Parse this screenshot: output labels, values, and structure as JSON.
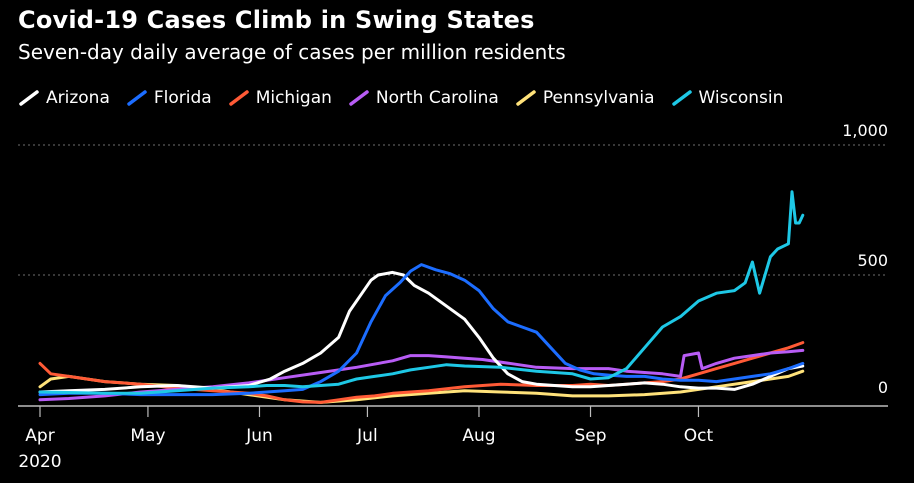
{
  "title": "Covid-19 Cases Climb in Swing States",
  "subtitle": "Seven-day daily average of cases per million residents",
  "colors": {
    "background": "#000000",
    "text": "#ffffff",
    "grid": "#6f6f6f",
    "axis": "#bdbdbd"
  },
  "chart_data": {
    "type": "line",
    "x_unit": "day of 2020",
    "x_ticks": [
      {
        "label": "Apr",
        "value": 92
      },
      {
        "label": "May",
        "value": 122
      },
      {
        "label": "Jun",
        "value": 153
      },
      {
        "label": "Jul",
        "value": 183
      },
      {
        "label": "Aug",
        "value": 214
      },
      {
        "label": "Sep",
        "value": 245
      },
      {
        "label": "Oct",
        "value": 275
      }
    ],
    "x_year_label": "2020",
    "xlim": [
      92,
      306
    ],
    "ylim": [
      0,
      1000
    ],
    "y_ticks": [
      {
        "label": "1,000",
        "value": 1000
      },
      {
        "label": "500",
        "value": 500
      },
      {
        "label": "0",
        "value": 0
      }
    ],
    "grid": true,
    "legend_position": "top-left",
    "series": [
      {
        "name": "Arizona",
        "color": "#ffffff",
        "x": [
          92,
          100,
          110,
          120,
          130,
          140,
          150,
          156,
          160,
          165,
          170,
          175,
          178,
          181,
          184,
          186,
          190,
          193,
          196,
          200,
          205,
          210,
          214,
          218,
          222,
          226,
          230,
          235,
          240,
          245,
          250,
          255,
          260,
          265,
          270,
          275,
          280,
          285,
          290,
          295,
          300,
          304
        ],
        "y": [
          50,
          55,
          60,
          70,
          75,
          65,
          75,
          100,
          130,
          160,
          200,
          260,
          360,
          420,
          480,
          500,
          510,
          500,
          460,
          430,
          380,
          330,
          260,
          180,
          120,
          90,
          80,
          75,
          70,
          70,
          75,
          80,
          85,
          80,
          70,
          65,
          65,
          60,
          80,
          110,
          140,
          150
        ]
      },
      {
        "name": "Florida",
        "color": "#1c6dff",
        "x": [
          92,
          100,
          110,
          120,
          130,
          140,
          150,
          155,
          160,
          165,
          170,
          175,
          180,
          184,
          188,
          192,
          195,
          198,
          202,
          206,
          210,
          214,
          218,
          222,
          226,
          230,
          234,
          238,
          242,
          246,
          250,
          255,
          260,
          265,
          270,
          275,
          280,
          285,
          290,
          295,
          300,
          304
        ],
        "y": [
          40,
          45,
          45,
          40,
          40,
          40,
          45,
          50,
          55,
          60,
          90,
          130,
          200,
          320,
          420,
          470,
          515,
          540,
          520,
          505,
          480,
          440,
          370,
          320,
          300,
          280,
          220,
          160,
          135,
          120,
          115,
          110,
          110,
          100,
          95,
          95,
          90,
          100,
          110,
          120,
          140,
          160
        ]
      },
      {
        "name": "Michigan",
        "color": "#ff5a36",
        "x": [
          92,
          95,
          100,
          110,
          120,
          130,
          140,
          150,
          155,
          160,
          165,
          170,
          175,
          180,
          185,
          190,
          200,
          210,
          220,
          230,
          240,
          245,
          250,
          255,
          260,
          265,
          270,
          275,
          280,
          285,
          290,
          295,
          300,
          304
        ],
        "y": [
          160,
          120,
          110,
          90,
          80,
          65,
          55,
          45,
          35,
          20,
          12,
          10,
          20,
          30,
          35,
          45,
          55,
          70,
          80,
          75,
          75,
          80,
          75,
          80,
          85,
          90,
          100,
          120,
          140,
          160,
          180,
          200,
          220,
          240
        ]
      },
      {
        "name": "North Carolina",
        "color": "#b85cf5",
        "x": [
          92,
          100,
          110,
          120,
          130,
          140,
          150,
          160,
          170,
          180,
          190,
          195,
          200,
          205,
          210,
          215,
          220,
          225,
          230,
          240,
          250,
          255,
          260,
          265,
          270,
          271,
          275,
          276,
          280,
          285,
          290,
          295,
          300,
          304
        ],
        "y": [
          20,
          25,
          35,
          50,
          60,
          70,
          85,
          105,
          125,
          145,
          170,
          190,
          190,
          185,
          180,
          175,
          165,
          155,
          145,
          140,
          140,
          130,
          125,
          120,
          110,
          190,
          200,
          140,
          160,
          180,
          190,
          200,
          205,
          210
        ]
      },
      {
        "name": "Pennsylvania",
        "color": "#ffe27a",
        "x": [
          92,
          95,
          100,
          105,
          110,
          120,
          130,
          140,
          150,
          160,
          170,
          180,
          190,
          200,
          210,
          220,
          230,
          240,
          250,
          260,
          270,
          280,
          290,
          300,
          304
        ],
        "y": [
          70,
          100,
          110,
          100,
          90,
          80,
          75,
          60,
          40,
          20,
          10,
          20,
          35,
          45,
          55,
          50,
          45,
          35,
          35,
          40,
          50,
          70,
          90,
          110,
          130
        ]
      },
      {
        "name": "Wisconsin",
        "color": "#1ec8e6",
        "x": [
          92,
          100,
          110,
          120,
          130,
          140,
          150,
          155,
          160,
          165,
          170,
          175,
          180,
          185,
          190,
          195,
          200,
          205,
          210,
          220,
          230,
          240,
          245,
          250,
          255,
          260,
          265,
          270,
          275,
          280,
          285,
          288,
          290,
          292,
          295,
          297,
          300,
          301,
          302,
          303,
          304
        ],
        "y": [
          50,
          48,
          45,
          45,
          55,
          65,
          70,
          75,
          75,
          70,
          75,
          80,
          100,
          110,
          120,
          135,
          145,
          155,
          150,
          145,
          130,
          120,
          100,
          105,
          140,
          220,
          300,
          340,
          400,
          430,
          440,
          470,
          550,
          430,
          570,
          600,
          620,
          820,
          700,
          700,
          730
        ]
      }
    ]
  }
}
